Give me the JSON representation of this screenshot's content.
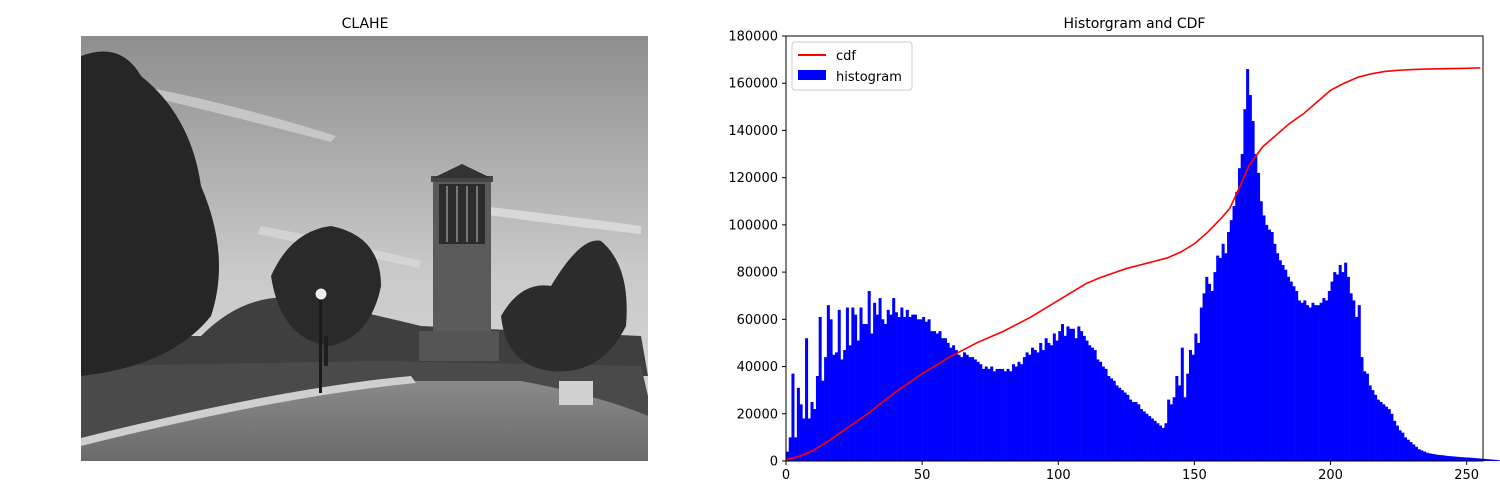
{
  "left_panel": {
    "title": "CLAHE",
    "image_description": "grayscale photo: bell tower, trees, lamp post, curved walkway"
  },
  "chart_data": {
    "type": "bar",
    "title": "Historgram and CDF",
    "xlabel": "",
    "ylabel": "",
    "xlim": [
      0,
      256
    ],
    "ylim": [
      0,
      180000
    ],
    "x_ticks": [
      0,
      50,
      100,
      150,
      200,
      250
    ],
    "y_ticks": [
      0,
      20000,
      40000,
      60000,
      80000,
      100000,
      120000,
      140000,
      160000,
      180000
    ],
    "grid": false,
    "legend": {
      "placement": "top-left",
      "entries": [
        "cdf",
        "histogram"
      ]
    },
    "series": [
      {
        "name": "histogram",
        "type": "bar",
        "color": "#0000ff",
        "bins": 256,
        "values": [
          4000,
          10000,
          37000,
          10000,
          31000,
          24000,
          18000,
          52000,
          18000,
          25000,
          22000,
          36000,
          61000,
          34000,
          44000,
          66000,
          60000,
          45000,
          46000,
          64000,
          43000,
          47000,
          65000,
          49000,
          65000,
          62000,
          51000,
          65000,
          58000,
          58000,
          72000,
          54000,
          67000,
          62000,
          69000,
          60000,
          58000,
          64000,
          62000,
          69000,
          63000,
          61000,
          65000,
          61000,
          64000,
          61000,
          62000,
          62000,
          60000,
          60000,
          61000,
          59000,
          60000,
          55000,
          55000,
          54000,
          55000,
          52000,
          52000,
          50000,
          48000,
          49000,
          47000,
          45000,
          44000,
          46000,
          45000,
          44000,
          44000,
          43000,
          42000,
          41000,
          39000,
          40000,
          39000,
          40000,
          38000,
          39000,
          39000,
          39000,
          38000,
          39000,
          38000,
          41000,
          40000,
          42000,
          41000,
          44000,
          46000,
          45000,
          48000,
          47000,
          46000,
          50000,
          47000,
          52000,
          50000,
          49000,
          54000,
          51000,
          55000,
          58000,
          53000,
          57000,
          56000,
          56000,
          52000,
          57000,
          55000,
          53000,
          51000,
          49000,
          48000,
          47000,
          43000,
          42000,
          40000,
          39000,
          36000,
          35000,
          34000,
          32000,
          31000,
          30000,
          29000,
          28000,
          26000,
          25000,
          25000,
          24000,
          22000,
          21000,
          20000,
          19000,
          18000,
          17000,
          16000,
          15000,
          14000,
          16000,
          26000,
          24000,
          27000,
          36000,
          32000,
          48000,
          27000,
          37000,
          47000,
          45000,
          54000,
          50000,
          65000,
          71000,
          78000,
          75000,
          72000,
          80000,
          87000,
          86000,
          92000,
          88000,
          97000,
          102000,
          108000,
          114000,
          124000,
          130000,
          149000,
          166000,
          155000,
          144000,
          130000,
          122000,
          110000,
          104000,
          100000,
          98000,
          97000,
          92000,
          88000,
          85000,
          83000,
          81000,
          78000,
          76000,
          74000,
          72000,
          68000,
          67000,
          68000,
          66000,
          65000,
          67000,
          66000,
          66000,
          67000,
          69000,
          68000,
          72000,
          76000,
          80000,
          79000,
          83000,
          80000,
          84000,
          78000,
          71000,
          68000,
          61000,
          66000,
          44000,
          38000,
          37000,
          32000,
          30000,
          28000,
          26000,
          25000,
          24000,
          23000,
          22000,
          20000,
          17000,
          15000,
          13000,
          12000,
          10000,
          9000,
          8000,
          7000,
          6000,
          5000,
          4500,
          4000,
          3500,
          3200,
          3000,
          2800,
          2600,
          2500,
          2400,
          2200,
          2100,
          2000,
          1900,
          1800,
          1700,
          1600,
          1500,
          1500,
          1400,
          1300,
          1200,
          1100,
          1000,
          900,
          800,
          700,
          600,
          500,
          400
        ]
      },
      {
        "name": "cdf",
        "type": "line",
        "color": "#ff0000",
        "x": [
          0,
          5,
          10,
          15,
          20,
          25,
          30,
          35,
          40,
          45,
          50,
          55,
          60,
          65,
          70,
          75,
          80,
          85,
          90,
          95,
          100,
          105,
          110,
          115,
          120,
          125,
          130,
          135,
          140,
          145,
          150,
          155,
          160,
          163,
          165,
          167,
          170,
          175,
          180,
          185,
          190,
          195,
          200,
          205,
          210,
          215,
          220,
          225,
          230,
          235,
          240,
          245,
          250,
          255
        ],
        "y": [
          500,
          2000,
          4500,
          8000,
          12000,
          16000,
          20000,
          24500,
          29000,
          33000,
          37000,
          40500,
          44000,
          47000,
          50000,
          52500,
          55000,
          58000,
          61000,
          64500,
          68000,
          71500,
          75000,
          77500,
          79500,
          81500,
          83000,
          84500,
          86000,
          88500,
          92000,
          97000,
          103000,
          107000,
          112000,
          117000,
          125000,
          133000,
          138000,
          143000,
          147000,
          152000,
          157000,
          160000,
          162500,
          164000,
          165000,
          165500,
          165800,
          166000,
          166100,
          166200,
          166300,
          166500
        ]
      }
    ]
  }
}
